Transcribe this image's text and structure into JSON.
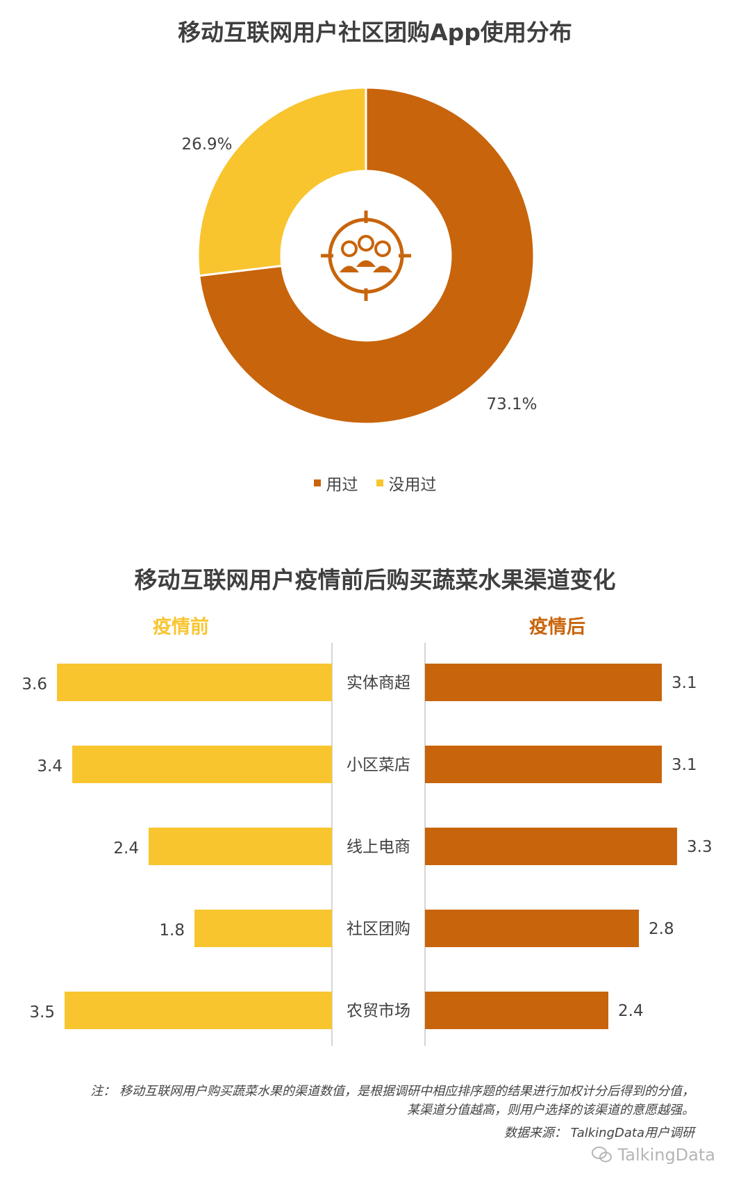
{
  "chart_data": [
    {
      "type": "pie",
      "title": "移动互联网用户社区团购App使用分布",
      "slices": [
        {
          "label": "用过",
          "value": 73.1,
          "display": "73.1%",
          "color": "#c8640b"
        },
        {
          "label": "没用过",
          "value": 26.9,
          "display": "26.9%",
          "color": "#f8c52f"
        }
      ],
      "legend": [
        "用过",
        "没用过"
      ],
      "legend_position": "bottom",
      "donut": true,
      "center_icon": "group-target-icon"
    },
    {
      "type": "bar",
      "orientation": "horizontal-butterfly",
      "title": "移动互联网用户疫情前后购买蔬菜水果渠道变化",
      "categories": [
        "实体商超",
        "小区菜店",
        "线上电商",
        "社区团购",
        "农贸市场"
      ],
      "series": [
        {
          "name": "疫情前",
          "values": [
            3.6,
            3.4,
            2.4,
            1.8,
            3.5
          ],
          "color": "#f8c52f"
        },
        {
          "name": "疫情后",
          "values": [
            3.1,
            3.1,
            3.3,
            2.8,
            2.4
          ],
          "color": "#c8640b"
        }
      ],
      "value_labels": {
        "before": [
          "3.6",
          "3.4",
          "2.4",
          "1.8",
          "3.5"
        ],
        "after": [
          "3.1",
          "3.1",
          "3.3",
          "2.8",
          "2.4"
        ]
      },
      "xlim": [
        0,
        3.6
      ]
    }
  ],
  "notes": {
    "line1": "注：  移动互联网用户购买蔬菜水果的渠道数值，是根据调研中相应排序题的结果进行加权计分后得到的分值，",
    "line2": "某渠道分值越高，则用户选择的该渠道的意愿越强。",
    "line3": "数据来源：  TalkingData用户调研"
  },
  "watermark": "TalkingData"
}
